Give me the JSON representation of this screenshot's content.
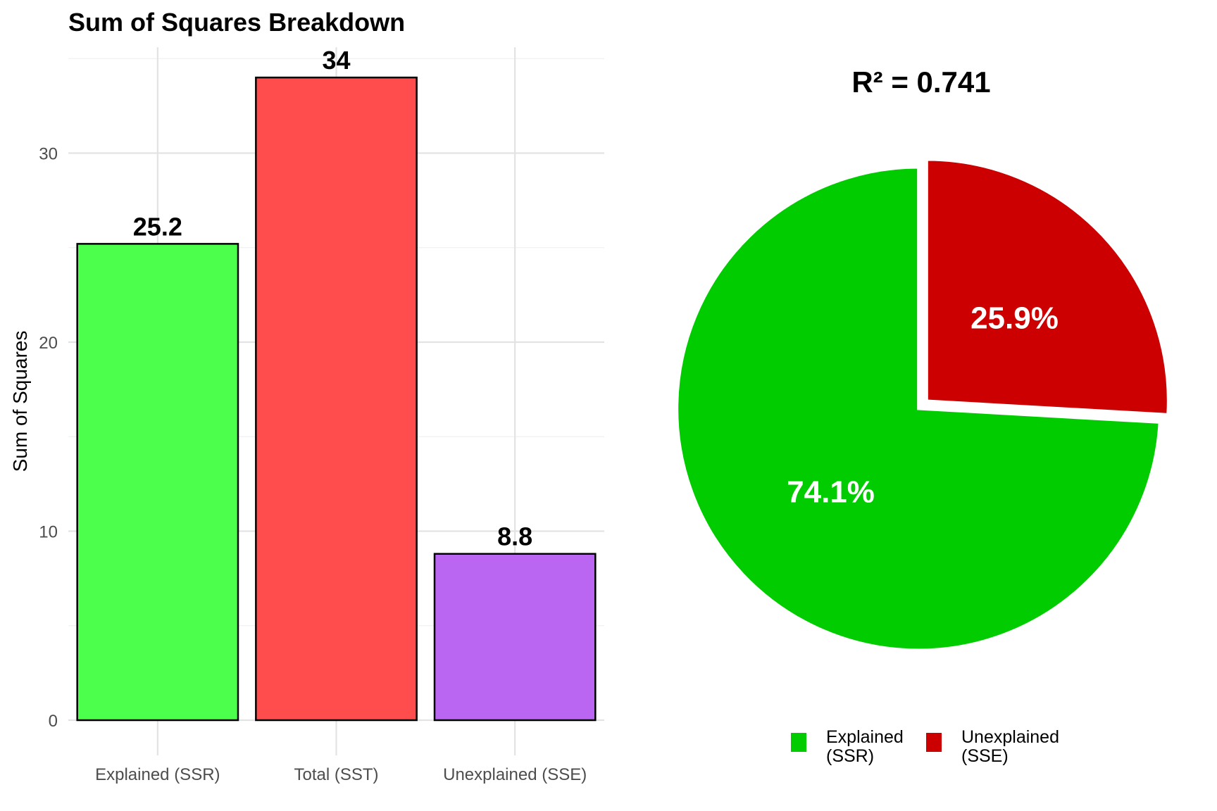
{
  "chart_data": [
    {
      "type": "bar",
      "title": "Sum of Squares Breakdown",
      "xlabel": "",
      "ylabel": "Sum of Squares",
      "categories": [
        "Explained (SSR)",
        "Total (SST)",
        "Unexplained (SSE)"
      ],
      "values": [
        25.2,
        34,
        8.8
      ],
      "data_labels": [
        "25.2",
        "34",
        "8.8"
      ],
      "colors": [
        "#4dff4d",
        "#ff4d4d",
        "#bb66f2"
      ],
      "ylim": [
        0,
        35.6
      ],
      "yticks": [
        0,
        10,
        20,
        30
      ],
      "ytick_labels": [
        "0",
        "10",
        "20",
        "30"
      ],
      "grid": true,
      "legend": "none"
    },
    {
      "type": "pie",
      "title": "R² = 0.741",
      "categories": [
        "Explained (SSR)",
        "Unexplained (SSE)"
      ],
      "values": [
        74.1,
        25.9
      ],
      "data_labels": [
        "74.1%",
        "25.9%"
      ],
      "colors": [
        "#00cc00",
        "#cc0000"
      ],
      "legend": "bottom",
      "legend_entries": [
        {
          "lines": [
            "Explained",
            "(SSR)"
          ],
          "color": "#00cc00"
        },
        {
          "lines": [
            "Unexplained",
            "(SSE)"
          ],
          "color": "#cc0000"
        }
      ]
    }
  ]
}
